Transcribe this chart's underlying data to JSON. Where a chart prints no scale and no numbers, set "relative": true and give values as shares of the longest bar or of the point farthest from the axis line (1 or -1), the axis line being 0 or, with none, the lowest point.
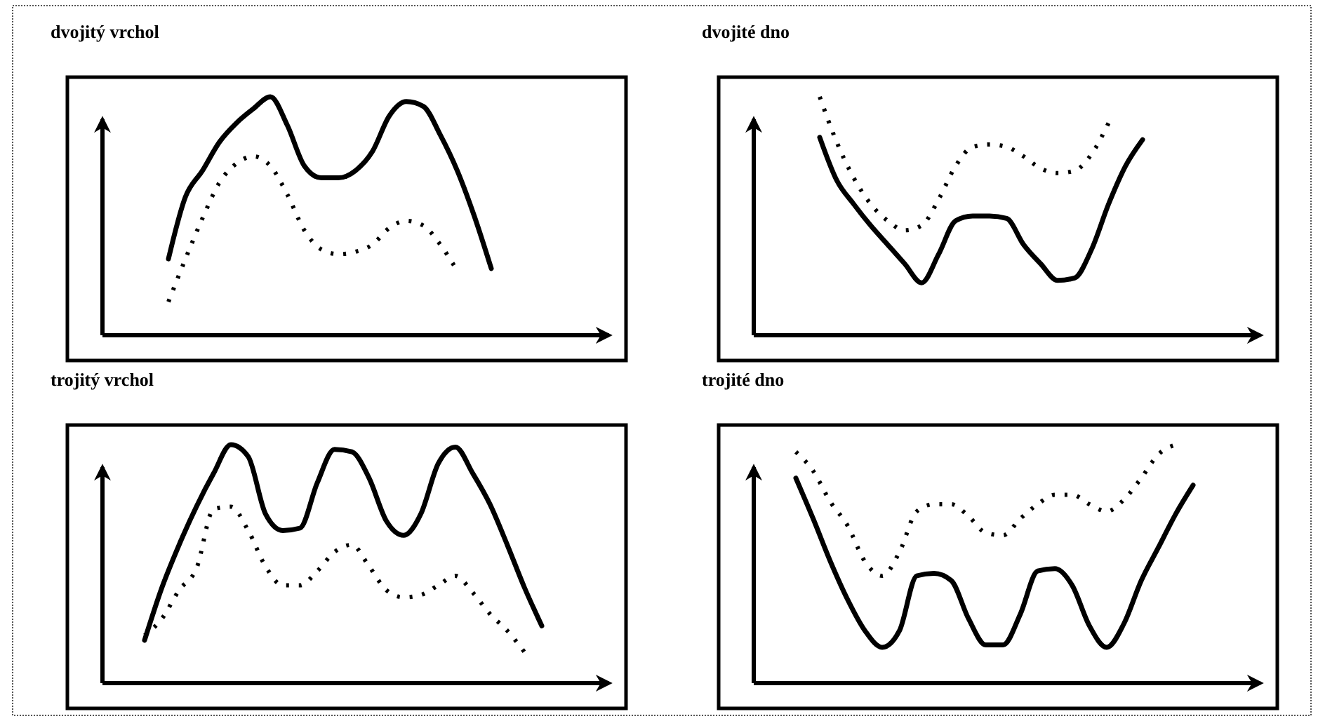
{
  "chart_data": [
    {
      "type": "line",
      "title": "dvojitý vrchol",
      "relative": true,
      "categories": [
        null,
        null,
        null,
        null,
        null,
        null,
        null,
        null,
        null,
        null,
        null,
        null,
        null,
        null,
        null,
        null,
        null,
        null,
        null,
        null
      ],
      "series": [
        {
          "color": "#000000",
          "line_style": "solid",
          "values": [
            0.32,
            0.58,
            0.69,
            0.81,
            0.89,
            0.95,
            1,
            0.88,
            0.71,
            0.66,
            0.66,
            0.69,
            0.77,
            0.92,
            0.98,
            0.96,
            0.84,
            0.69,
            0.5,
            0.28
          ]
        },
        {
          "color": "#000000",
          "line_style": "dotted",
          "values": [
            0.14,
            0.32,
            0.49,
            0.64,
            0.72,
            0.75,
            0.71,
            0.59,
            0.44,
            0.36,
            0.34,
            0.35,
            0.38,
            0.45,
            0.48,
            0.46,
            0.38,
            0.27,
            null,
            null
          ]
        }
      ]
    },
    {
      "type": "line",
      "title": "dvojité dno",
      "relative": true,
      "categories": [
        null,
        null,
        null,
        null,
        null,
        null,
        null,
        null,
        null,
        null,
        null,
        null,
        null,
        null,
        null,
        null,
        null,
        null,
        null,
        null
      ],
      "series": [
        {
          "color": "#000000",
          "line_style": "solid",
          "values": [
            0.83,
            0.65,
            0.55,
            0.46,
            0.38,
            0.3,
            0.22,
            0.34,
            0.48,
            0.5,
            0.5,
            0.49,
            0.38,
            0.3,
            0.23,
            0.24,
            0.36,
            0.55,
            0.71,
            0.82
          ]
        },
        {
          "color": "#000000",
          "line_style": "dotted",
          "values": [
            1,
            0.81,
            0.66,
            0.55,
            0.48,
            0.44,
            0.46,
            0.57,
            0.71,
            0.79,
            0.8,
            0.79,
            0.75,
            0.7,
            0.68,
            0.69,
            0.76,
            0.89,
            null,
            null
          ]
        }
      ]
    },
    {
      "type": "line",
      "title": "trojitý vrchol",
      "relative": true,
      "categories": [
        null,
        null,
        null,
        null,
        null,
        null,
        null,
        null,
        null,
        null,
        null,
        null,
        null,
        null,
        null,
        null,
        null,
        null,
        null,
        null,
        null,
        null,
        null,
        null
      ],
      "series": [
        {
          "color": "#000000",
          "line_style": "solid",
          "values": [
            0.18,
            0.4,
            0.58,
            0.74,
            0.88,
            1,
            0.95,
            0.71,
            0.64,
            0.65,
            0.84,
            0.98,
            0.97,
            0.86,
            0.68,
            0.62,
            0.71,
            0.92,
            0.99,
            0.88,
            0.75,
            0.58,
            0.4,
            0.24
          ]
        },
        {
          "color": "#000000",
          "line_style": "dotted",
          "values": [
            0.2,
            0.27,
            0.39,
            0.48,
            0.73,
            0.74,
            0.64,
            0.49,
            0.41,
            0.41,
            0.47,
            0.55,
            0.58,
            0.49,
            0.39,
            0.36,
            0.37,
            0.41,
            0.45,
            0.38,
            0.29,
            0.22,
            0.13,
            null
          ]
        }
      ]
    },
    {
      "type": "line",
      "title": "trojité dno",
      "relative": true,
      "categories": [
        null,
        null,
        null,
        null,
        null,
        null,
        null,
        null,
        null,
        null,
        null,
        null,
        null,
        null,
        null,
        null,
        null,
        null,
        null,
        null,
        null,
        null,
        null,
        null
      ],
      "series": [
        {
          "color": "#000000",
          "line_style": "solid",
          "values": [
            0.86,
            0.69,
            0.51,
            0.35,
            0.22,
            0.15,
            0.22,
            0.45,
            0.46,
            0.43,
            0.27,
            0.16,
            0.16,
            0.29,
            0.47,
            0.48,
            0.41,
            0.24,
            0.15,
            0.25,
            0.43,
            0.57,
            0.71,
            0.83
          ]
        },
        {
          "color": "#000000",
          "line_style": "dotted",
          "values": [
            0.97,
            0.89,
            0.76,
            0.66,
            0.51,
            0.45,
            0.55,
            0.72,
            0.75,
            0.75,
            0.7,
            0.63,
            0.62,
            0.69,
            0.75,
            0.79,
            0.79,
            0.75,
            0.72,
            0.77,
            0.86,
            0.96,
            1,
            null
          ]
        }
      ]
    }
  ]
}
